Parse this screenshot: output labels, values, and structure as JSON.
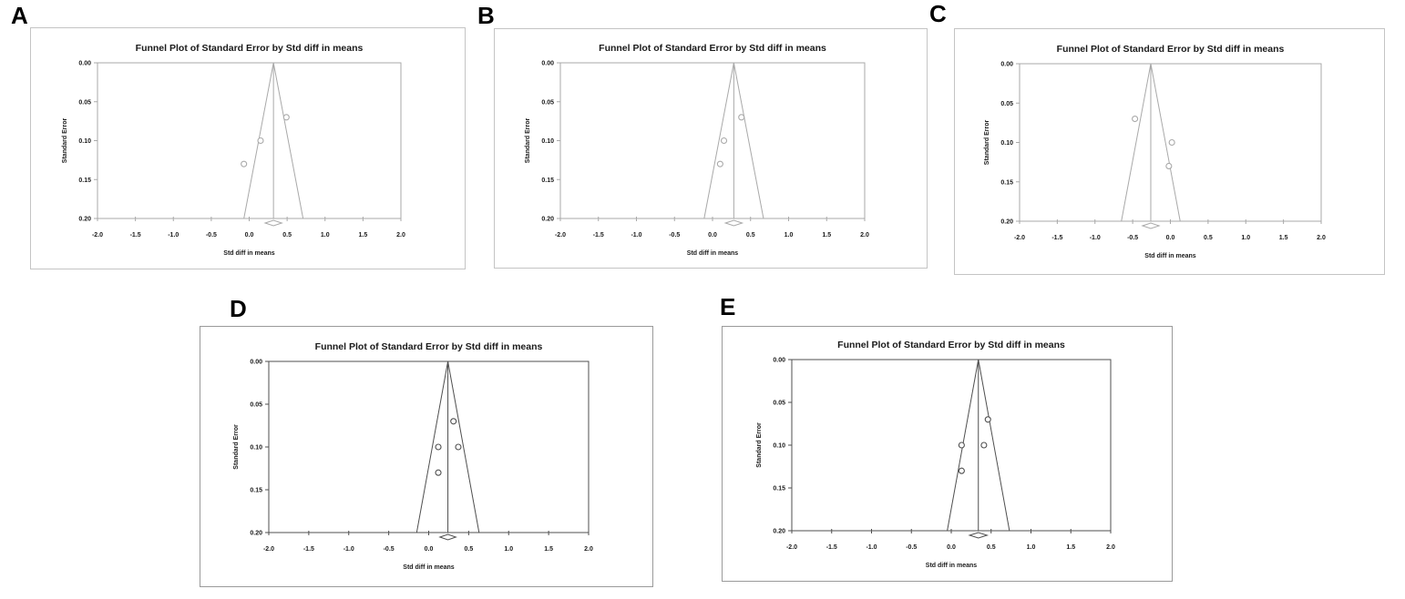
{
  "figure": {
    "description": "Five meta-analysis funnel plots",
    "text_color": "#1a1a1a"
  },
  "chart_data": [
    {
      "panel": "A",
      "type": "scatter",
      "title": "Funnel Plot of Standard Error by Std diff in means",
      "xlabel": "Std diff in means",
      "ylabel": "Standard Error",
      "xlim": [
        -2.0,
        2.0
      ],
      "ylim": [
        0.0,
        0.2
      ],
      "x_ticks": [
        "-2.0",
        "-1.5",
        "-1.0",
        "-0.5",
        "0.0",
        "0.5",
        "1.0",
        "1.5",
        "2.0"
      ],
      "y_ticks": [
        "0.00",
        "0.05",
        "0.10",
        "0.15",
        "0.20"
      ],
      "combined_effect": 0.32,
      "funnel_halfwidth_at_se_max": 0.39,
      "points": [
        {
          "x": 0.49,
          "se": 0.07
        },
        {
          "x": 0.15,
          "se": 0.1
        },
        {
          "x": -0.07,
          "se": 0.13
        }
      ],
      "diamond": {
        "center": 0.32,
        "halfwidth": 0.11
      },
      "line_color": "#a9a9a9"
    },
    {
      "panel": "B",
      "type": "scatter",
      "title": "Funnel Plot of Standard Error by Std diff in means",
      "xlabel": "Std diff in means",
      "ylabel": "Standard Error",
      "xlim": [
        -2.0,
        2.0
      ],
      "ylim": [
        0.0,
        0.2
      ],
      "x_ticks": [
        "-2.0",
        "-1.5",
        "-1.0",
        "-0.5",
        "0.0",
        "0.5",
        "1.0",
        "1.5",
        "2.0"
      ],
      "y_ticks": [
        "0.00",
        "0.05",
        "0.10",
        "0.15",
        "0.20"
      ],
      "combined_effect": 0.28,
      "funnel_halfwidth_at_se_max": 0.39,
      "points": [
        {
          "x": 0.38,
          "se": 0.07
        },
        {
          "x": 0.15,
          "se": 0.1
        },
        {
          "x": 0.1,
          "se": 0.13
        }
      ],
      "diamond": {
        "center": 0.28,
        "halfwidth": 0.11
      },
      "line_color": "#a9a9a9"
    },
    {
      "panel": "C",
      "type": "scatter",
      "title": "Funnel Plot of Standard Error by Std diff in means",
      "xlabel": "Std diff in means",
      "ylabel": "Standard Error",
      "xlim": [
        -2.0,
        2.0
      ],
      "ylim": [
        0.0,
        0.2
      ],
      "x_ticks": [
        "-2.0",
        "-1.5",
        "-1.0",
        "-0.5",
        "0.0",
        "0.5",
        "1.0",
        "1.5",
        "2.0"
      ],
      "y_ticks": [
        "0.00",
        "0.05",
        "0.10",
        "0.15",
        "0.20"
      ],
      "combined_effect": -0.26,
      "funnel_halfwidth_at_se_max": 0.39,
      "points": [
        {
          "x": -0.47,
          "se": 0.07
        },
        {
          "x": 0.02,
          "se": 0.1
        },
        {
          "x": -0.02,
          "se": 0.13
        }
      ],
      "diamond": {
        "center": -0.26,
        "halfwidth": 0.11
      },
      "line_color": "#a9a9a9"
    },
    {
      "panel": "D",
      "type": "scatter",
      "title": "Funnel Plot of Standard Error by Std diff in means",
      "xlabel": "Std diff in means",
      "ylabel": "Standard Error",
      "xlim": [
        -2.0,
        2.0
      ],
      "ylim": [
        0.0,
        0.2
      ],
      "x_ticks": [
        "-2.0",
        "-1.5",
        "-1.0",
        "-0.5",
        "0.0",
        "0.5",
        "1.0",
        "1.5",
        "2.0"
      ],
      "y_ticks": [
        "0.00",
        "0.05",
        "0.10",
        "0.15",
        "0.20"
      ],
      "combined_effect": 0.24,
      "funnel_halfwidth_at_se_max": 0.39,
      "points": [
        {
          "x": 0.31,
          "se": 0.07
        },
        {
          "x": 0.12,
          "se": 0.1
        },
        {
          "x": 0.37,
          "se": 0.1
        },
        {
          "x": 0.12,
          "se": 0.13
        }
      ],
      "diamond": {
        "center": 0.24,
        "halfwidth": 0.1
      },
      "line_color": "#4f4f4f"
    },
    {
      "panel": "E",
      "type": "scatter",
      "title": "Funnel Plot of Standard Error by Std diff in means",
      "xlabel": "Std diff in means",
      "ylabel": "Standard Error",
      "xlim": [
        -2.0,
        2.0
      ],
      "ylim": [
        0.0,
        0.2
      ],
      "x_ticks": [
        "-2.0",
        "-1.5",
        "-1.0",
        "-0.5",
        "0.0",
        "0.5",
        "1.0",
        "1.5",
        "2.0"
      ],
      "y_ticks": [
        "0.00",
        "0.05",
        "0.10",
        "0.15",
        "0.20"
      ],
      "combined_effect": 0.34,
      "funnel_halfwidth_at_se_max": 0.39,
      "points": [
        {
          "x": 0.46,
          "se": 0.07
        },
        {
          "x": 0.13,
          "se": 0.1
        },
        {
          "x": 0.41,
          "se": 0.1
        },
        {
          "x": 0.13,
          "se": 0.13
        }
      ],
      "diamond": {
        "center": 0.34,
        "halfwidth": 0.11
      },
      "line_color": "#4f4f4f"
    }
  ]
}
